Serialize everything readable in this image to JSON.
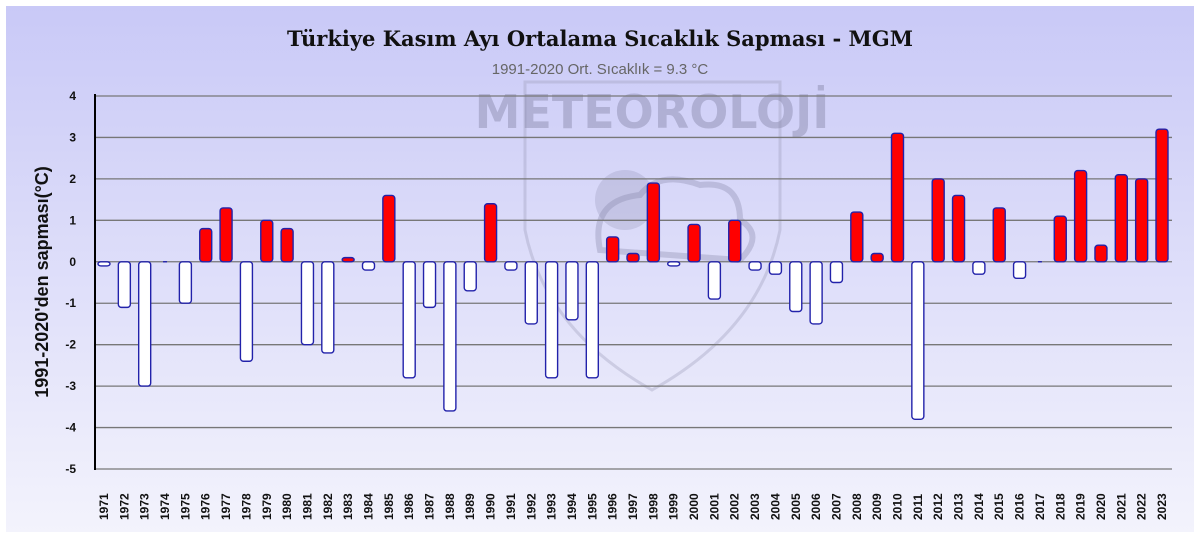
{
  "chart_data": {
    "type": "bar",
    "title": "Türkiye Kasım Ayı Ortalama Sıcaklık Sapması - MGM",
    "subtitle": "1991-2020 Ort. Sıcaklık = 9.3 °C",
    "xlabel": "",
    "ylabel": "1991-2020'den sapması(°C)",
    "ylim": [
      -5,
      4
    ],
    "yticks": [
      4,
      3,
      2,
      1,
      0,
      -1,
      -2,
      -3,
      -4,
      -5
    ],
    "grid": true,
    "watermark": "METEOROLOJİ",
    "categories": [
      "1971",
      "1972",
      "1973",
      "1974",
      "1975",
      "1976",
      "1977",
      "1978",
      "1979",
      "1980",
      "1981",
      "1982",
      "1983",
      "1984",
      "1985",
      "1986",
      "1987",
      "1988",
      "1989",
      "1990",
      "1991",
      "1992",
      "1993",
      "1994",
      "1995",
      "1996",
      "1997",
      "1998",
      "1999",
      "2000",
      "2001",
      "2002",
      "2003",
      "2004",
      "2005",
      "2006",
      "2007",
      "2008",
      "2009",
      "2010",
      "2011",
      "2012",
      "2013",
      "2014",
      "2015",
      "2016",
      "2017",
      "2018",
      "2019",
      "2020",
      "2021",
      "2022",
      "2023"
    ],
    "values": [
      -0.1,
      -1.1,
      -3.0,
      0.0,
      -1.0,
      0.8,
      1.3,
      -2.4,
      1.0,
      0.8,
      -2.0,
      -2.2,
      0.1,
      -0.2,
      1.6,
      -2.8,
      -1.1,
      -3.6,
      -0.7,
      1.4,
      -0.2,
      -1.5,
      -2.8,
      -1.4,
      -2.8,
      0.6,
      0.2,
      1.9,
      -0.1,
      0.9,
      -0.9,
      1.0,
      -0.2,
      -0.3,
      -1.2,
      -1.5,
      -0.5,
      1.2,
      0.2,
      3.1,
      -3.8,
      2.0,
      1.6,
      -0.3,
      1.3,
      -0.4,
      0.0,
      1.1,
      2.2,
      0.4,
      2.1,
      2.0,
      3.2
    ],
    "colors": {
      "positive": "#ff0000",
      "negative": "#ffffff",
      "edge": "#2222aa"
    }
  }
}
